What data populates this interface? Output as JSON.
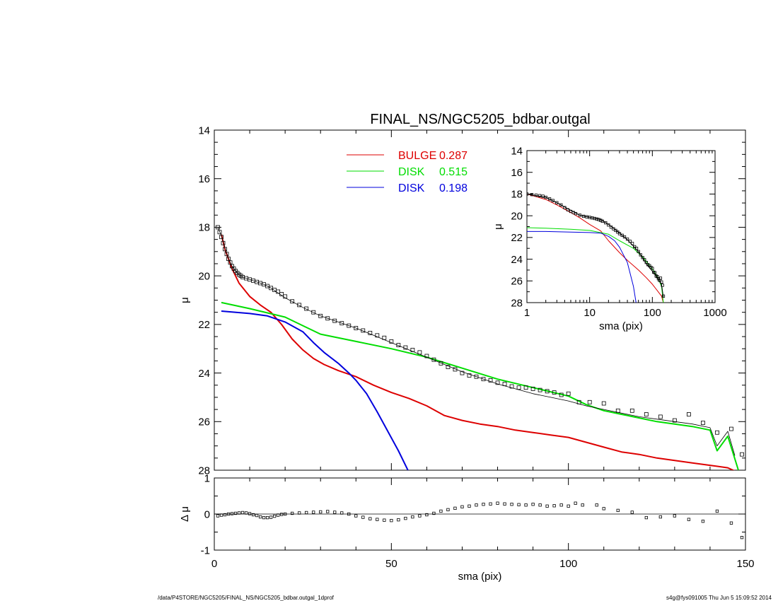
{
  "page": {
    "footer_left": "/data/P4STORE/NGC5205/FINAL_NS/NGC5205_bdbar.outgal_1dprof",
    "footer_right": "s4g@fys091005  Thu Jun  5 15:09:52 2014"
  },
  "chart_data": [
    {
      "type": "line",
      "title": "FINAL_NS/NGC5205_bdbar.outgal",
      "xlabel": "",
      "ylabel": "μ",
      "xlim": [
        0,
        150
      ],
      "ylim": [
        28,
        14
      ],
      "y_inverted": true,
      "yticks": [
        14,
        16,
        18,
        20,
        22,
        24,
        26,
        28
      ],
      "grid": false,
      "legend_position": "top-center",
      "legend": [
        {
          "label": "BULGE",
          "value": "0.287",
          "color": "#dd0000"
        },
        {
          "label": "DISK",
          "value": "0.515",
          "color": "#00dd00"
        },
        {
          "label": "DISK",
          "value": "0.198",
          "color": "#0000dd"
        }
      ],
      "series": [
        {
          "name": "BULGE",
          "color": "#dd0000",
          "style": "line",
          "x": [
            2,
            3,
            5,
            7,
            10,
            13,
            16,
            19,
            22,
            25,
            28,
            31,
            35,
            40,
            45,
            50,
            55,
            60,
            65,
            70,
            75,
            80,
            85,
            90,
            95,
            100,
            105,
            110,
            115,
            120,
            125,
            130,
            135,
            140,
            145,
            148
          ],
          "y": [
            18.3,
            18.9,
            19.7,
            20.3,
            20.85,
            21.2,
            21.5,
            22.0,
            22.6,
            23.05,
            23.4,
            23.65,
            23.9,
            24.15,
            24.5,
            24.8,
            25.05,
            25.35,
            25.75,
            25.95,
            26.1,
            26.2,
            26.35,
            26.45,
            26.55,
            26.65,
            26.85,
            27.05,
            27.25,
            27.35,
            27.5,
            27.6,
            27.7,
            27.8,
            27.9,
            28.1
          ]
        },
        {
          "name": "DISK",
          "color": "#00dd00",
          "style": "line",
          "x": [
            2,
            10,
            20,
            25,
            30,
            40,
            50,
            60,
            70,
            80,
            90,
            100,
            105,
            110,
            115,
            120,
            125,
            130,
            135,
            140,
            142,
            145,
            148
          ],
          "y": [
            21.1,
            21.35,
            21.7,
            22.05,
            22.4,
            22.7,
            23.0,
            23.35,
            23.8,
            24.25,
            24.6,
            24.95,
            25.3,
            25.55,
            25.7,
            25.85,
            26.0,
            26.1,
            26.2,
            26.35,
            27.2,
            26.6,
            28.0
          ]
        },
        {
          "name": "DISK",
          "color": "#0000dd",
          "style": "line",
          "x": [
            2,
            10,
            15,
            20,
            25,
            28,
            31,
            35,
            38,
            40,
            43,
            46,
            49,
            52,
            55
          ],
          "y": [
            21.45,
            21.55,
            21.65,
            21.9,
            22.3,
            22.75,
            23.15,
            23.6,
            24.0,
            24.3,
            24.85,
            25.6,
            26.4,
            27.2,
            28.1
          ]
        },
        {
          "name": "",
          "color": "#000000",
          "style": "line",
          "x": [
            1,
            2,
            3,
            4,
            5,
            6,
            7,
            8,
            9,
            10,
            12,
            14,
            16,
            18,
            20,
            25,
            30,
            35,
            40,
            45,
            50,
            55,
            60,
            65,
            70,
            75,
            80,
            85,
            90,
            95,
            100,
            105,
            110,
            115,
            120,
            125,
            130,
            135,
            140,
            142,
            145,
            147
          ],
          "y": [
            18.0,
            18.35,
            18.85,
            19.3,
            19.6,
            19.8,
            19.95,
            20.05,
            20.1,
            20.15,
            20.25,
            20.35,
            20.5,
            20.7,
            20.9,
            21.3,
            21.65,
            21.9,
            22.15,
            22.45,
            22.75,
            23.05,
            23.35,
            23.65,
            23.95,
            24.2,
            24.45,
            24.65,
            24.85,
            25.0,
            25.15,
            25.35,
            25.5,
            25.65,
            25.8,
            25.9,
            26.0,
            26.1,
            26.25,
            27.0,
            26.4,
            27.4
          ]
        },
        {
          "name": "",
          "color": "#000000",
          "style": "markers",
          "x": [
            1,
            1.5,
            2,
            2.5,
            3,
            3.5,
            4,
            4.5,
            5,
            5.5,
            6,
            6.5,
            7,
            7.5,
            8,
            9,
            10,
            11,
            12,
            13,
            14,
            15,
            16,
            17,
            18,
            19,
            20,
            22,
            24,
            26,
            28,
            30,
            32,
            34,
            36,
            38,
            40,
            42,
            44,
            46,
            48,
            50,
            52,
            54,
            56,
            58,
            60,
            62,
            64,
            66,
            68,
            70,
            72,
            74,
            76,
            78,
            80,
            82,
            84,
            86,
            88,
            90,
            92,
            94,
            96,
            98,
            100,
            103,
            106,
            110,
            114,
            118,
            122,
            126,
            130,
            134,
            138,
            142,
            146,
            149
          ],
          "y": [
            18.0,
            18.2,
            18.4,
            18.65,
            18.9,
            19.1,
            19.3,
            19.45,
            19.6,
            19.7,
            19.8,
            19.88,
            19.95,
            20.0,
            20.05,
            20.1,
            20.15,
            20.2,
            20.25,
            20.3,
            20.35,
            20.42,
            20.5,
            20.58,
            20.65,
            20.75,
            20.85,
            21.05,
            21.2,
            21.35,
            21.5,
            21.65,
            21.75,
            21.85,
            21.95,
            22.05,
            22.15,
            22.25,
            22.35,
            22.45,
            22.55,
            22.7,
            22.85,
            22.95,
            23.05,
            23.15,
            23.3,
            23.45,
            23.6,
            23.75,
            23.85,
            24.0,
            24.1,
            24.15,
            24.25,
            24.3,
            24.4,
            24.45,
            24.55,
            24.6,
            24.6,
            24.65,
            24.7,
            24.75,
            24.8,
            24.9,
            24.85,
            25.2,
            25.2,
            25.25,
            25.55,
            25.55,
            25.7,
            25.8,
            25.95,
            25.7,
            26.05,
            26.45,
            26.3,
            27.35
          ]
        }
      ]
    },
    {
      "type": "line",
      "xlabel": "sma (pix)",
      "ylabel": "Δ μ",
      "xlim": [
        0,
        150
      ],
      "ylim": [
        -1,
        1
      ],
      "xticks": [
        0,
        50,
        100,
        150
      ],
      "yticks": [
        -1,
        0,
        1
      ],
      "grid": false,
      "series": [
        {
          "name": "",
          "color": "#000000",
          "style": "markers",
          "x": [
            1,
            2,
            3,
            4,
            5,
            6,
            7,
            8,
            9,
            10,
            11,
            12,
            13,
            14,
            15,
            16,
            17,
            18,
            19,
            20,
            22,
            24,
            26,
            28,
            30,
            32,
            34,
            36,
            38,
            40,
            42,
            44,
            46,
            48,
            50,
            52,
            54,
            56,
            58,
            60,
            62,
            64,
            66,
            68,
            70,
            72,
            74,
            76,
            78,
            80,
            82,
            84,
            86,
            88,
            90,
            92,
            94,
            96,
            98,
            100,
            102,
            104,
            108,
            110,
            114,
            118,
            122,
            126,
            130,
            134,
            138,
            142,
            146,
            149
          ],
          "y": [
            -0.05,
            -0.03,
            -0.02,
            0.0,
            0.01,
            0.02,
            0.03,
            0.04,
            0.03,
            0.01,
            -0.02,
            -0.04,
            -0.08,
            -0.1,
            -0.1,
            -0.09,
            -0.06,
            -0.03,
            -0.01,
            0.0,
            0.02,
            0.03,
            0.04,
            0.05,
            0.06,
            0.07,
            0.05,
            0.03,
            0.0,
            -0.05,
            -0.09,
            -0.13,
            -0.15,
            -0.17,
            -0.18,
            -0.16,
            -0.12,
            -0.08,
            -0.05,
            -0.02,
            0.02,
            0.08,
            0.12,
            0.16,
            0.2,
            0.22,
            0.25,
            0.27,
            0.28,
            0.3,
            0.28,
            0.27,
            0.26,
            0.25,
            0.27,
            0.25,
            0.22,
            0.23,
            0.25,
            0.22,
            0.3,
            0.25,
            0.25,
            0.15,
            0.1,
            0.05,
            -0.1,
            -0.08,
            -0.05,
            -0.15,
            -0.2,
            0.08,
            -0.25,
            -0.65
          ]
        }
      ]
    },
    {
      "type": "line",
      "xlabel": "sma (pix)",
      "ylabel": "μ",
      "x_scale": "log",
      "xlim": [
        1,
        1000
      ],
      "ylim": [
        28,
        14
      ],
      "y_inverted": true,
      "xticks": [
        1,
        10,
        100,
        1000
      ],
      "yticks": [
        14,
        16,
        18,
        20,
        22,
        24,
        26,
        28
      ],
      "grid": false,
      "series": [
        {
          "name": "BULGE",
          "color": "#dd0000",
          "style": "line",
          "x": [
            1,
            2,
            3,
            5,
            7,
            10,
            15,
            20,
            30,
            40,
            60,
            80,
            100,
            120,
            140,
            150
          ],
          "y": [
            18.0,
            18.5,
            19.0,
            19.7,
            20.2,
            20.8,
            21.4,
            22.3,
            23.4,
            24.1,
            25.0,
            25.7,
            26.3,
            26.9,
            27.4,
            28.0
          ]
        },
        {
          "name": "DISK",
          "color": "#00dd00",
          "style": "line",
          "x": [
            1,
            2,
            5,
            10,
            20,
            30,
            50,
            70,
            100,
            120,
            140,
            150
          ],
          "y": [
            21.1,
            21.15,
            21.25,
            21.35,
            21.7,
            22.3,
            23.0,
            23.8,
            24.9,
            25.6,
            26.5,
            28.0
          ]
        },
        {
          "name": "DISK",
          "color": "#0000dd",
          "style": "line",
          "x": [
            1,
            2,
            5,
            10,
            15,
            20,
            25,
            30,
            40,
            50,
            55
          ],
          "y": [
            21.45,
            21.45,
            21.5,
            21.55,
            21.6,
            21.9,
            22.3,
            22.9,
            24.3,
            26.5,
            28.0
          ]
        },
        {
          "name": "",
          "color": "#000000",
          "style": "line",
          "x": [
            1,
            2,
            3,
            5,
            7,
            10,
            15,
            20,
            30,
            40,
            60,
            80,
            100,
            120,
            140,
            150
          ],
          "y": [
            18.0,
            18.3,
            18.8,
            19.5,
            19.95,
            20.15,
            20.35,
            20.8,
            21.6,
            22.2,
            23.3,
            24.4,
            25.1,
            25.7,
            26.3,
            27.5
          ]
        },
        {
          "name": "",
          "color": "#000000",
          "style": "markers",
          "x": [
            1,
            1.2,
            1.4,
            1.6,
            1.8,
            2,
            2.3,
            2.6,
            3,
            3.5,
            4,
            4.5,
            5,
            5.5,
            6,
            7,
            8,
            9,
            10,
            11,
            12,
            13,
            14,
            15,
            16,
            18,
            20,
            22,
            24,
            26,
            28,
            30,
            33,
            36,
            40,
            44,
            48,
            52,
            56,
            60,
            65,
            70,
            75,
            80,
            85,
            90,
            95,
            100,
            105,
            110,
            115,
            120,
            125,
            130,
            135,
            140,
            145,
            150
          ],
          "y": [
            18.0,
            18.05,
            18.1,
            18.15,
            18.2,
            18.3,
            18.45,
            18.6,
            18.8,
            19.0,
            19.25,
            19.45,
            19.6,
            19.7,
            19.8,
            19.95,
            20.05,
            20.1,
            20.15,
            20.2,
            20.25,
            20.3,
            20.35,
            20.42,
            20.5,
            20.65,
            20.85,
            21.05,
            21.2,
            21.35,
            21.5,
            21.65,
            21.8,
            21.95,
            22.15,
            22.35,
            22.55,
            22.85,
            23.0,
            23.3,
            23.6,
            23.85,
            24.05,
            24.3,
            24.5,
            24.6,
            24.75,
            24.85,
            25.2,
            25.25,
            25.55,
            25.6,
            25.8,
            25.95,
            25.75,
            26.1,
            26.4,
            27.4
          ]
        }
      ]
    }
  ]
}
